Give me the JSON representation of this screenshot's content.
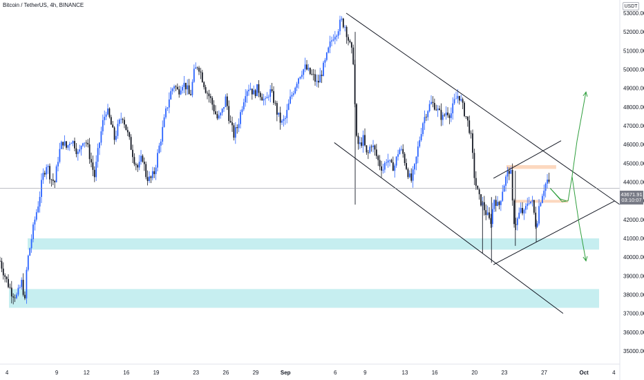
{
  "header": {
    "title": "Bitcoin / TetherUS, 4h, BINANCE"
  },
  "axis_unit": "USDT",
  "last_price": {
    "value": "43671.91",
    "countdown": "03:10:07"
  },
  "chart_data": {
    "type": "candlestick",
    "title": "Bitcoin / TetherUS, 4h, BINANCE",
    "y_axis": {
      "ticks": [
        "35000.00",
        "36000.00",
        "37000.00",
        "38000.00",
        "39000.00",
        "40000.00",
        "41000.00",
        "42000.00",
        "43000.00",
        "44000.00",
        "45000.00",
        "46000.00",
        "47000.00",
        "48000.00",
        "49000.00",
        "50000.00",
        "51000.00",
        "52000.00",
        "53000.00"
      ],
      "range": [
        34300,
        53700
      ]
    },
    "x_axis": {
      "ticks": [
        {
          "label": "4",
          "day": 4
        },
        {
          "label": "9",
          "day": 9
        },
        {
          "label": "12",
          "day": 12
        },
        {
          "label": "16",
          "day": 16
        },
        {
          "label": "19",
          "day": 19
        },
        {
          "label": "23",
          "day": 23
        },
        {
          "label": "26",
          "day": 26
        },
        {
          "label": "29",
          "day": 29
        },
        {
          "label": "Sep",
          "day": 32,
          "bold": true
        },
        {
          "label": "6",
          "day": 37
        },
        {
          "label": "9",
          "day": 40
        },
        {
          "label": "13",
          "day": 44
        },
        {
          "label": "16",
          "day": 47
        },
        {
          "label": "20",
          "day": 51
        },
        {
          "label": "23",
          "day": 54
        },
        {
          "label": "27",
          "day": 58
        },
        {
          "label": "Oct",
          "day": 62,
          "bold": true
        },
        {
          "label": "4",
          "day": 65
        }
      ],
      "range": [
        3.3,
        65.6
      ]
    },
    "price_path": [
      [
        3.3,
        39800
      ],
      [
        3.6,
        39300
      ],
      [
        4.0,
        38700
      ],
      [
        4.5,
        38100
      ],
      [
        5.0,
        37900
      ],
      [
        5.5,
        38700
      ],
      [
        5.8,
        37600
      ],
      [
        6.0,
        39600
      ],
      [
        6.4,
        40800
      ],
      [
        6.8,
        42000
      ],
      [
        7.2,
        43000
      ],
      [
        7.6,
        44300
      ],
      [
        8.0,
        45000
      ],
      [
        8.4,
        44200
      ],
      [
        8.8,
        44000
      ],
      [
        9.2,
        45500
      ],
      [
        9.6,
        46200
      ],
      [
        10.0,
        45800
      ],
      [
        10.4,
        46300
      ],
      [
        10.8,
        46000
      ],
      [
        11.2,
        45400
      ],
      [
        11.6,
        46300
      ],
      [
        12.0,
        46100
      ],
      [
        12.4,
        45200
      ],
      [
        12.8,
        44300
      ],
      [
        13.2,
        45800
      ],
      [
        13.6,
        47100
      ],
      [
        14.0,
        47900
      ],
      [
        14.4,
        47200
      ],
      [
        14.8,
        46300
      ],
      [
        15.2,
        47000
      ],
      [
        15.6,
        47600
      ],
      [
        16.0,
        46800
      ],
      [
        16.4,
        46000
      ],
      [
        16.8,
        45200
      ],
      [
        17.2,
        44700
      ],
      [
        17.6,
        45400
      ],
      [
        18.0,
        44300
      ],
      [
        18.4,
        44100
      ],
      [
        18.8,
        44500
      ],
      [
        19.2,
        45600
      ],
      [
        19.6,
        46700
      ],
      [
        20.0,
        47800
      ],
      [
        20.4,
        48700
      ],
      [
        20.8,
        49200
      ],
      [
        21.2,
        48800
      ],
      [
        21.6,
        49300
      ],
      [
        22.0,
        49100
      ],
      [
        22.4,
        48500
      ],
      [
        22.8,
        49800
      ],
      [
        23.2,
        50300
      ],
      [
        23.6,
        49600
      ],
      [
        24.0,
        48900
      ],
      [
        24.4,
        48500
      ],
      [
        24.8,
        47900
      ],
      [
        25.2,
        47300
      ],
      [
        25.6,
        47700
      ],
      [
        26.0,
        48500
      ],
      [
        26.4,
        47200
      ],
      [
        26.8,
        46500
      ],
      [
        27.2,
        47000
      ],
      [
        27.6,
        48000
      ],
      [
        28.0,
        48900
      ],
      [
        28.4,
        49100
      ],
      [
        28.8,
        48700
      ],
      [
        29.2,
        49000
      ],
      [
        29.6,
        48600
      ],
      [
        30.0,
        48200
      ],
      [
        30.4,
        48900
      ],
      [
        30.8,
        48400
      ],
      [
        31.2,
        47600
      ],
      [
        31.6,
        47100
      ],
      [
        32.0,
        47400
      ],
      [
        32.4,
        48300
      ],
      [
        32.8,
        48900
      ],
      [
        33.2,
        49500
      ],
      [
        33.6,
        49900
      ],
      [
        34.0,
        50100
      ],
      [
        34.4,
        49800
      ],
      [
        34.8,
        49600
      ],
      [
        35.2,
        49200
      ],
      [
        35.6,
        49800
      ],
      [
        36.0,
        50400
      ],
      [
        36.4,
        51200
      ],
      [
        36.8,
        51800
      ],
      [
        37.2,
        52100
      ],
      [
        37.6,
        52600
      ],
      [
        38.0,
        52300
      ],
      [
        38.4,
        51400
      ],
      [
        38.8,
        50600
      ],
      [
        39.1,
        46300
      ],
      [
        39.4,
        45900
      ],
      [
        39.8,
        46300
      ],
      [
        40.2,
        45300
      ],
      [
        40.6,
        46100
      ],
      [
        41.0,
        45600
      ],
      [
        41.4,
        45000
      ],
      [
        41.8,
        44700
      ],
      [
        42.2,
        45300
      ],
      [
        42.6,
        44800
      ],
      [
        43.0,
        44900
      ],
      [
        43.4,
        45800
      ],
      [
        43.8,
        45500
      ],
      [
        44.2,
        44700
      ],
      [
        44.6,
        44000
      ],
      [
        45.0,
        44800
      ],
      [
        45.4,
        46100
      ],
      [
        45.8,
        47200
      ],
      [
        46.2,
        47800
      ],
      [
        46.6,
        48200
      ],
      [
        47.0,
        48100
      ],
      [
        47.4,
        47700
      ],
      [
        47.8,
        47400
      ],
      [
        48.2,
        47800
      ],
      [
        48.6,
        47600
      ],
      [
        49.0,
        48300
      ],
      [
        49.4,
        48700
      ],
      [
        49.8,
        48000
      ],
      [
        50.2,
        47400
      ],
      [
        50.6,
        46600
      ],
      [
        51.0,
        44200
      ],
      [
        51.4,
        43200
      ],
      [
        51.8,
        42800
      ],
      [
        52.2,
        42300
      ],
      [
        52.6,
        41800
      ],
      [
        53.0,
        43200
      ],
      [
        53.4,
        42600
      ],
      [
        53.8,
        43600
      ],
      [
        54.2,
        44300
      ],
      [
        54.6,
        44800
      ],
      [
        54.9,
        42000
      ],
      [
        55.2,
        41800
      ],
      [
        55.6,
        42500
      ],
      [
        56.0,
        42300
      ],
      [
        56.4,
        43100
      ],
      [
        56.8,
        42900
      ],
      [
        57.2,
        41600
      ],
      [
        57.5,
        42800
      ],
      [
        57.9,
        43600
      ],
      [
        58.3,
        44100
      ],
      [
        58.6,
        43672
      ]
    ],
    "zones": [
      {
        "from": 40400,
        "to": 41000,
        "color": "#c6eef0"
      },
      {
        "from": 37300,
        "to": 38300,
        "color": "#c6eef0"
      }
    ],
    "boxes": [
      {
        "x1": 54.2,
        "x2": 59.2,
        "from": 44700,
        "to": 44900,
        "color": "#fcd8bf"
      },
      {
        "x1": 55.0,
        "x2": 60.4,
        "from": 42900,
        "to": 43050,
        "color": "#fcd8bf"
      }
    ],
    "trendlines": [
      {
        "x1": 38.1,
        "y1": 53000,
        "x2": 65.6,
        "y2": 42800,
        "color": "#131722"
      },
      {
        "x1": 36.9,
        "y1": 46100,
        "x2": 59.9,
        "y2": 37000,
        "color": "#131722"
      },
      {
        "x1": 52.9,
        "y1": 44200,
        "x2": 59.7,
        "y2": 46200,
        "color": "#131722"
      },
      {
        "x1": 52.9,
        "y1": 39600,
        "x2": 65.1,
        "y2": 43000,
        "color": "#131722"
      }
    ],
    "projections": [
      {
        "points": [
          [
            58.6,
            43672
          ],
          [
            59.8,
            42950
          ],
          [
            60.4,
            43000
          ],
          [
            60.8,
            44300
          ]
        ],
        "color": "#2e9e3c"
      },
      {
        "points": [
          [
            60.8,
            44300
          ],
          [
            61.3,
            46200
          ],
          [
            62.2,
            48800
          ]
        ],
        "color": "#2e9e3c",
        "arrow": true
      },
      {
        "points": [
          [
            60.8,
            44300
          ],
          [
            61.5,
            41800
          ],
          [
            62.2,
            39800
          ]
        ],
        "color": "#2e9e3c",
        "arrow": true
      },
      {
        "points": [
          [
            58.6,
            43672
          ],
          [
            59.6,
            43100
          ],
          [
            60.2,
            43000
          ]
        ],
        "color": "#2e9e3c"
      }
    ],
    "colors": {
      "up": "#2962ff",
      "down": "#131722",
      "price_line": "#9598a1"
    }
  }
}
